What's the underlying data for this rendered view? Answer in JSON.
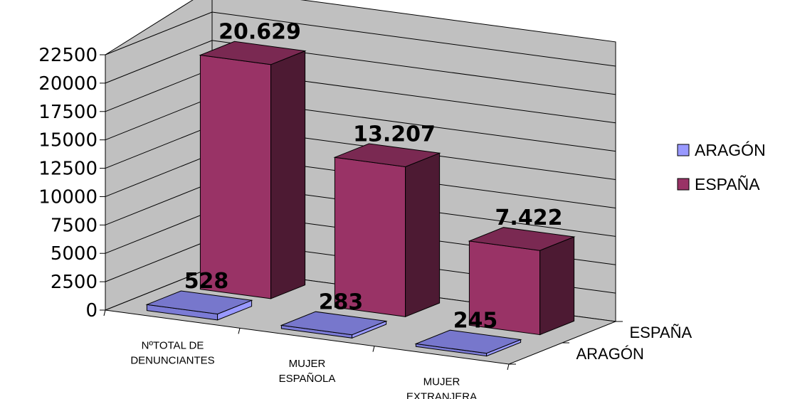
{
  "chart_data": {
    "type": "bar",
    "categories": [
      "NºTOTAL DE DENUNCIANTES",
      "MUJER ESPAÑOLA",
      "MUJER EXTRANJERA"
    ],
    "category_lines": [
      [
        "NºTOTAL DE",
        "DENUNCIANTES"
      ],
      [
        "MUJER",
        "ESPAÑOLA"
      ],
      [
        "MUJER",
        "EXTRANJERA"
      ]
    ],
    "series": [
      {
        "name": "ARAGÓN",
        "values": [
          528,
          283,
          245
        ],
        "labels": [
          "528",
          "283",
          "245"
        ],
        "color": "#7B7BD6",
        "side_color": "#9999FF",
        "top_color": "#7777CC"
      },
      {
        "name": "ESPAÑA",
        "values": [
          20629,
          13207,
          7422
        ],
        "labels": [
          "20.629",
          "13.207",
          "7.422"
        ],
        "color": "#993366",
        "side_color": "#4D1A33",
        "top_color": "#7A2952"
      }
    ],
    "depth_labels": [
      "ARAGÓN",
      "ESPAÑA"
    ],
    "yticks": [
      "0",
      "2500",
      "5000",
      "7500",
      "10000",
      "12500",
      "15000",
      "17500",
      "20000",
      "22500"
    ],
    "ylim": [
      0,
      22500
    ],
    "legend_position": "right",
    "grid": true,
    "wall_color": "#C0C0C0",
    "floor_color": "#C0C0C0"
  }
}
